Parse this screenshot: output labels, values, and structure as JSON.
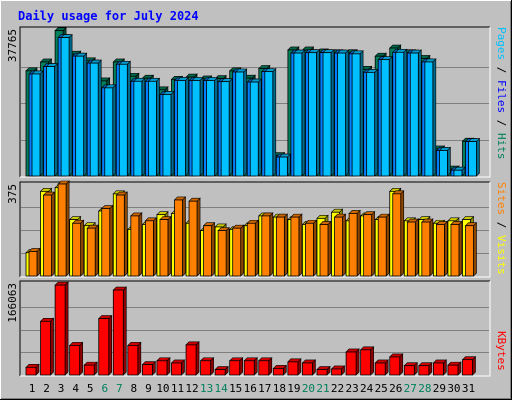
{
  "chart_data": [
    {
      "type": "bar",
      "title": "Daily usage for July 2024",
      "categories": [
        "1",
        "2",
        "3",
        "4",
        "5",
        "6",
        "7",
        "8",
        "9",
        "10",
        "11",
        "12",
        "13",
        "14",
        "15",
        "16",
        "17",
        "18",
        "19",
        "20",
        "21",
        "22",
        "23",
        "24",
        "25",
        "26",
        "27",
        "28",
        "29",
        "30",
        "31"
      ],
      "weekend_days": [
        "6",
        "7",
        "13",
        "14",
        "20",
        "21",
        "27",
        "28"
      ],
      "y_max_label": "37765",
      "ylim": [
        0,
        37765
      ],
      "axis_title_parts": [
        "Pages",
        "Files",
        "Hits"
      ],
      "series": [
        {
          "name": "Hits",
          "color": "#00805c",
          "values": [
            27200,
            29500,
            37600,
            31500,
            29800,
            24600,
            29500,
            25800,
            25300,
            22300,
            25000,
            25600,
            25100,
            25200,
            27200,
            25300,
            27800,
            5300,
            32600,
            32600,
            32100,
            31900,
            31900,
            27600,
            31000,
            33100,
            31900,
            30400,
            7000,
            1800,
            9000
          ]
        },
        {
          "name": "Files",
          "color": "#0080ff",
          "values": [
            26400,
            28300,
            35800,
            31000,
            29200,
            22800,
            28900,
            24500,
            24500,
            21100,
            24700,
            24700,
            24700,
            24400,
            26900,
            24300,
            27000,
            4900,
            31800,
            31900,
            31900,
            31800,
            31600,
            26800,
            30100,
            32000,
            31800,
            29500,
            6600,
            1500,
            8900
          ]
        },
        {
          "name": "Pages",
          "color": "#00c0ff",
          "values": [
            26400,
            28300,
            35800,
            31000,
            29200,
            22800,
            28900,
            24500,
            24500,
            21100,
            24700,
            24700,
            24700,
            24400,
            26900,
            24300,
            27000,
            4900,
            31800,
            31900,
            31900,
            31800,
            31600,
            26800,
            30100,
            32000,
            31800,
            29500,
            6600,
            1500,
            8900
          ]
        }
      ]
    },
    {
      "type": "bar",
      "categories": [
        "1",
        "2",
        "3",
        "4",
        "5",
        "6",
        "7",
        "8",
        "9",
        "10",
        "11",
        "12",
        "13",
        "14",
        "15",
        "16",
        "17",
        "18",
        "19",
        "20",
        "21",
        "22",
        "23",
        "24",
        "25",
        "26",
        "27",
        "28",
        "29",
        "30",
        "31"
      ],
      "y_max_label": "375",
      "ylim": [
        0,
        375
      ],
      "axis_title_parts": [
        "Sites",
        "Visits"
      ],
      "series": [
        {
          "name": "Visits",
          "color": "#ffff00",
          "values": [
            95,
            345,
            360,
            230,
            205,
            265,
            335,
            190,
            210,
            250,
            255,
            215,
            185,
            200,
            190,
            205,
            245,
            240,
            230,
            210,
            235,
            260,
            225,
            245,
            230,
            345,
            225,
            230,
            215,
            225,
            230
          ]
        },
        {
          "name": "Sites",
          "color": "#ff8000",
          "values": [
            100,
            330,
            375,
            215,
            195,
            275,
            330,
            245,
            225,
            230,
            310,
            305,
            205,
            185,
            195,
            215,
            245,
            240,
            240,
            215,
            210,
            240,
            255,
            250,
            240,
            335,
            220,
            220,
            210,
            210,
            205
          ]
        }
      ]
    },
    {
      "type": "bar",
      "categories": [
        "1",
        "2",
        "3",
        "4",
        "5",
        "6",
        "7",
        "8",
        "9",
        "10",
        "11",
        "12",
        "13",
        "14",
        "15",
        "16",
        "17",
        "18",
        "19",
        "20",
        "21",
        "22",
        "23",
        "24",
        "25",
        "26",
        "27",
        "28",
        "29",
        "30",
        "31"
      ],
      "y_max_label": "166063",
      "ylim": [
        0,
        166063
      ],
      "axis_title_parts": [
        "KBytes"
      ],
      "series": [
        {
          "name": "KBytes",
          "color": "#ff0000",
          "values": [
            14000,
            98000,
            164000,
            54000,
            18000,
            103000,
            155000,
            54000,
            19000,
            26000,
            22000,
            55000,
            26000,
            10000,
            26000,
            26000,
            26000,
            12000,
            24000,
            22000,
            10000,
            11000,
            42000,
            46000,
            22000,
            33000,
            17000,
            17000,
            22000,
            18000,
            28000
          ]
        }
      ]
    }
  ],
  "colors": {
    "background": "#c0c0c0",
    "title_text": "#0000ff",
    "label_pages": "#00c0ff",
    "label_files": "#0000ff",
    "label_hits": "#00805c",
    "label_sites": "#ff8000",
    "label_visits": "#ffff00",
    "label_kbytes": "#ff0000",
    "weekend_day": "#00805c",
    "weekday": "#000000"
  }
}
